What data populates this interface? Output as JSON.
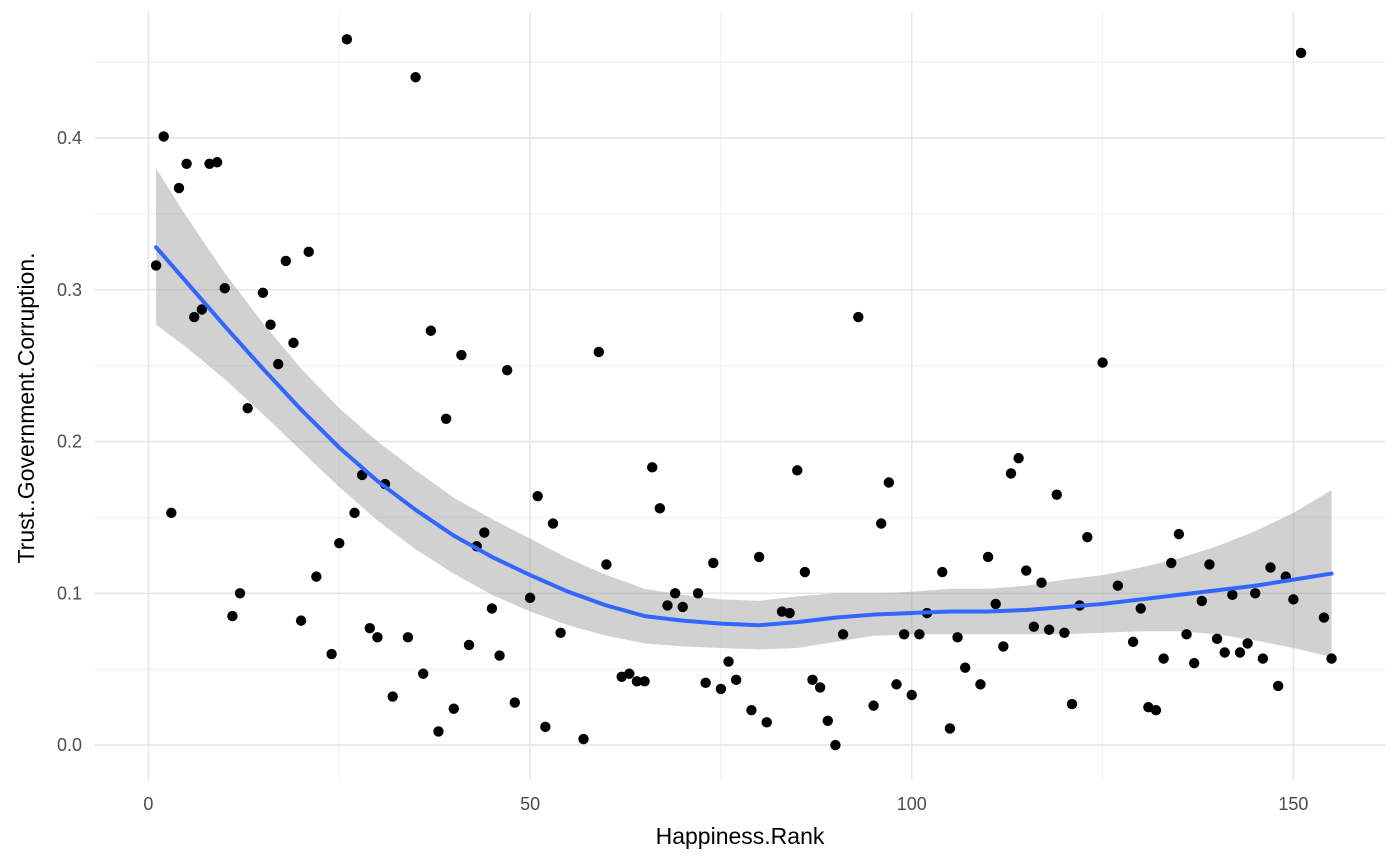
{
  "chart_data": {
    "type": "scatter",
    "title": "",
    "xlabel": "Happiness.Rank",
    "ylabel": "Trust..Government.Corruption.",
    "xlim": [
      -7,
      162
    ],
    "ylim": [
      -0.023,
      0.483
    ],
    "x_ticks": [
      0,
      50,
      100,
      150
    ],
    "x_tick_labels": [
      "0",
      "50",
      "100",
      "150"
    ],
    "y_ticks": [
      0.0,
      0.1,
      0.2,
      0.3,
      0.4
    ],
    "y_tick_labels": [
      "0.0",
      "0.1",
      "0.2",
      "0.3",
      "0.4"
    ],
    "grid": true,
    "legend": "none",
    "colors": {
      "point": "#000000",
      "smooth_line": "#3366ff",
      "confidence_band": "#999999"
    },
    "series": [
      {
        "kind": "points",
        "points": [
          [
            1,
            0.316
          ],
          [
            2,
            0.401
          ],
          [
            3,
            0.153
          ],
          [
            4,
            0.367
          ],
          [
            5,
            0.383
          ],
          [
            6,
            0.282
          ],
          [
            7,
            0.287
          ],
          [
            8,
            0.383
          ],
          [
            9,
            0.384
          ],
          [
            10,
            0.301
          ],
          [
            11,
            0.085
          ],
          [
            12,
            0.1
          ],
          [
            13,
            0.222
          ],
          [
            15,
            0.298
          ],
          [
            16,
            0.277
          ],
          [
            17,
            0.251
          ],
          [
            18,
            0.319
          ],
          [
            19,
            0.265
          ],
          [
            20,
            0.082
          ],
          [
            21,
            0.325
          ],
          [
            22,
            0.111
          ],
          [
            24,
            0.06
          ],
          [
            25,
            0.133
          ],
          [
            26,
            0.465
          ],
          [
            27,
            0.153
          ],
          [
            28,
            0.178
          ],
          [
            29,
            0.077
          ],
          [
            30,
            0.071
          ],
          [
            31,
            0.172
          ],
          [
            32,
            0.032
          ],
          [
            34,
            0.071
          ],
          [
            35,
            0.44
          ],
          [
            36,
            0.047
          ],
          [
            37,
            0.273
          ],
          [
            38,
            0.009
          ],
          [
            39,
            0.215
          ],
          [
            40,
            0.024
          ],
          [
            41,
            0.257
          ],
          [
            42,
            0.066
          ],
          [
            43,
            0.131
          ],
          [
            44,
            0.14
          ],
          [
            45,
            0.09
          ],
          [
            46,
            0.059
          ],
          [
            47,
            0.247
          ],
          [
            48,
            0.028
          ],
          [
            50,
            0.097
          ],
          [
            51,
            0.164
          ],
          [
            52,
            0.012
          ],
          [
            53,
            0.146
          ],
          [
            54,
            0.074
          ],
          [
            57,
            0.004
          ],
          [
            59,
            0.259
          ],
          [
            60,
            0.119
          ],
          [
            62,
            0.045
          ],
          [
            63,
            0.047
          ],
          [
            64,
            0.042
          ],
          [
            65,
            0.042
          ],
          [
            66,
            0.183
          ],
          [
            67,
            0.156
          ],
          [
            68,
            0.092
          ],
          [
            69,
            0.1
          ],
          [
            70,
            0.091
          ],
          [
            72,
            0.1
          ],
          [
            73,
            0.041
          ],
          [
            74,
            0.12
          ],
          [
            75,
            0.037
          ],
          [
            76,
            0.055
          ],
          [
            77,
            0.043
          ],
          [
            79,
            0.023
          ],
          [
            80,
            0.124
          ],
          [
            81,
            0.015
          ],
          [
            83,
            0.088
          ],
          [
            84,
            0.087
          ],
          [
            85,
            0.181
          ],
          [
            86,
            0.114
          ],
          [
            87,
            0.043
          ],
          [
            88,
            0.038
          ],
          [
            89,
            0.016
          ],
          [
            90,
            0.0
          ],
          [
            91,
            0.073
          ],
          [
            93,
            0.282
          ],
          [
            95,
            0.026
          ],
          [
            96,
            0.146
          ],
          [
            97,
            0.173
          ],
          [
            98,
            0.04
          ],
          [
            99,
            0.073
          ],
          [
            100,
            0.033
          ],
          [
            101,
            0.073
          ],
          [
            102,
            0.087
          ],
          [
            104,
            0.114
          ],
          [
            105,
            0.011
          ],
          [
            106,
            0.071
          ],
          [
            107,
            0.051
          ],
          [
            109,
            0.04
          ],
          [
            110,
            0.124
          ],
          [
            111,
            0.093
          ],
          [
            112,
            0.065
          ],
          [
            113,
            0.179
          ],
          [
            114,
            0.189
          ],
          [
            115,
            0.115
          ],
          [
            116,
            0.078
          ],
          [
            117,
            0.107
          ],
          [
            118,
            0.076
          ],
          [
            119,
            0.165
          ],
          [
            120,
            0.074
          ],
          [
            121,
            0.027
          ],
          [
            122,
            0.092
          ],
          [
            123,
            0.137
          ],
          [
            125,
            0.252
          ],
          [
            127,
            0.105
          ],
          [
            129,
            0.068
          ],
          [
            130,
            0.09
          ],
          [
            131,
            0.025
          ],
          [
            132,
            0.023
          ],
          [
            133,
            0.057
          ],
          [
            134,
            0.12
          ],
          [
            135,
            0.139
          ],
          [
            136,
            0.073
          ],
          [
            137,
            0.054
          ],
          [
            138,
            0.095
          ],
          [
            139,
            0.119
          ],
          [
            140,
            0.07
          ],
          [
            141,
            0.061
          ],
          [
            142,
            0.099
          ],
          [
            143,
            0.061
          ],
          [
            144,
            0.067
          ],
          [
            145,
            0.1
          ],
          [
            146,
            0.057
          ],
          [
            147,
            0.117
          ],
          [
            148,
            0.039
          ],
          [
            149,
            0.111
          ],
          [
            150,
            0.096
          ],
          [
            151,
            0.456
          ],
          [
            154,
            0.084
          ],
          [
            155,
            0.057
          ]
        ]
      },
      {
        "kind": "smooth",
        "x": [
          1,
          5,
          10,
          15,
          20,
          25,
          30,
          35,
          40,
          45,
          50,
          55,
          60,
          65,
          70,
          75,
          80,
          85,
          90,
          95,
          100,
          105,
          110,
          115,
          120,
          125,
          130,
          135,
          140,
          145,
          150,
          155
        ],
        "y": [
          0.328,
          0.305,
          0.276,
          0.248,
          0.221,
          0.196,
          0.174,
          0.155,
          0.138,
          0.124,
          0.112,
          0.101,
          0.092,
          0.085,
          0.082,
          0.08,
          0.079,
          0.081,
          0.084,
          0.086,
          0.087,
          0.088,
          0.088,
          0.089,
          0.091,
          0.093,
          0.096,
          0.099,
          0.102,
          0.105,
          0.109,
          0.113
        ],
        "lower": [
          0.277,
          0.262,
          0.241,
          0.218,
          0.194,
          0.17,
          0.148,
          0.129,
          0.113,
          0.099,
          0.088,
          0.079,
          0.072,
          0.067,
          0.065,
          0.064,
          0.063,
          0.064,
          0.068,
          0.072,
          0.073,
          0.073,
          0.073,
          0.073,
          0.073,
          0.074,
          0.075,
          0.075,
          0.073,
          0.069,
          0.064,
          0.058
        ],
        "upper": [
          0.38,
          0.348,
          0.311,
          0.278,
          0.248,
          0.222,
          0.2,
          0.181,
          0.163,
          0.149,
          0.136,
          0.123,
          0.112,
          0.103,
          0.099,
          0.096,
          0.095,
          0.098,
          0.1,
          0.1,
          0.101,
          0.103,
          0.103,
          0.105,
          0.109,
          0.112,
          0.117,
          0.123,
          0.131,
          0.141,
          0.153,
          0.168
        ]
      }
    ]
  }
}
